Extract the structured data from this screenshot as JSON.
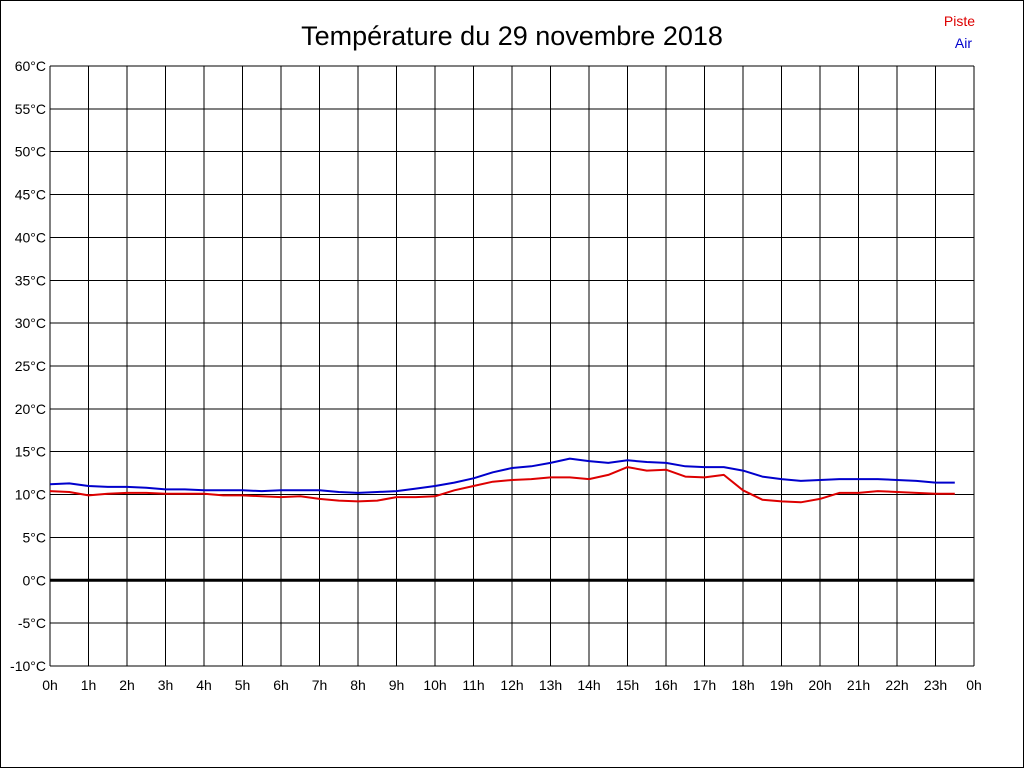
{
  "chart_data": {
    "type": "line",
    "title": "Température du 29 novembre 2018",
    "xlabel": "",
    "ylabel": "",
    "xlim": [
      0,
      24
    ],
    "ylim": [
      -10,
      60
    ],
    "y_step": 5,
    "grid": true,
    "legend_position": "top-right",
    "y_tick_labels": [
      "60°C",
      "55°C",
      "50°C",
      "45°C",
      "40°C",
      "35°C",
      "30°C",
      "25°C",
      "20°C",
      "15°C",
      "10°C",
      "5°C",
      "0°C",
      "-5°C",
      "-10°C"
    ],
    "x_tick_labels": [
      "0h",
      "1h",
      "2h",
      "3h",
      "4h",
      "5h",
      "6h",
      "7h",
      "8h",
      "9h",
      "10h",
      "11h",
      "12h",
      "13h",
      "14h",
      "15h",
      "16h",
      "17h",
      "18h",
      "19h",
      "20h",
      "21h",
      "22h",
      "23h",
      "0h"
    ],
    "x": [
      0,
      0.5,
      1,
      1.5,
      2,
      2.5,
      3,
      3.5,
      4,
      4.5,
      5,
      5.5,
      6,
      6.5,
      7,
      7.5,
      8,
      8.5,
      9,
      9.5,
      10,
      10.5,
      11,
      11.5,
      12,
      12.5,
      13,
      13.5,
      14,
      14.5,
      15,
      15.5,
      16,
      16.5,
      17,
      17.5,
      18,
      18.5,
      19,
      19.5,
      20,
      20.5,
      21,
      21.5,
      22,
      22.5,
      23,
      23.5
    ],
    "series": [
      {
        "name": "Piste",
        "color": "#dd0000",
        "values": [
          10.4,
          10.3,
          9.9,
          10.1,
          10.2,
          10.2,
          10.1,
          10.1,
          10.1,
          9.9,
          9.9,
          9.8,
          9.7,
          9.8,
          9.5,
          9.3,
          9.2,
          9.3,
          9.7,
          9.7,
          9.8,
          10.5,
          11.0,
          11.5,
          11.7,
          11.8,
          12.0,
          12.0,
          11.8,
          12.3,
          13.2,
          12.8,
          12.9,
          12.1,
          12.0,
          12.3,
          10.5,
          9.4,
          9.2,
          9.1,
          9.5,
          10.2,
          10.2,
          10.4,
          10.3,
          10.2,
          10.1,
          10.1
        ]
      },
      {
        "name": "Air",
        "color": "#0000cc",
        "values": [
          11.2,
          11.3,
          11.0,
          10.9,
          10.9,
          10.8,
          10.6,
          10.6,
          10.5,
          10.5,
          10.5,
          10.4,
          10.5,
          10.5,
          10.5,
          10.3,
          10.2,
          10.3,
          10.4,
          10.7,
          11.0,
          11.4,
          11.9,
          12.6,
          13.1,
          13.3,
          13.7,
          14.2,
          13.9,
          13.7,
          14.0,
          13.8,
          13.7,
          13.3,
          13.2,
          13.2,
          12.8,
          12.1,
          11.8,
          11.6,
          11.7,
          11.8,
          11.8,
          11.8,
          11.7,
          11.6,
          11.4,
          11.4
        ]
      }
    ],
    "zero_line": 0,
    "colors": {
      "background": "#ffffff",
      "grid": "#000000",
      "text": "#000000"
    }
  }
}
